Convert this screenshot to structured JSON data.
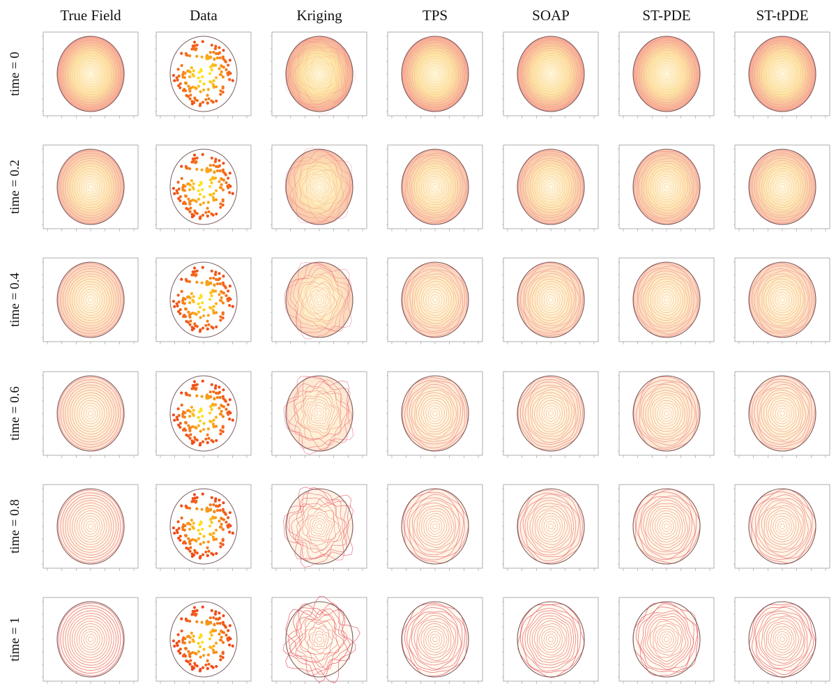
{
  "figure": {
    "columns": [
      "True Field",
      "Data",
      "Kriging",
      "TPS",
      "SOAP",
      "ST-PDE",
      "ST-tPDE"
    ],
    "rows": [
      "time = 0",
      "time = 0.2",
      "time = 0.4",
      "time = 0.6",
      "time = 0.8",
      "time = 1"
    ]
  },
  "colors": {
    "center": "#fff8d8",
    "mid": "#fde29a",
    "edge": "#f5a08c",
    "contour_light": "#f7b08a",
    "contour_dark": "#e8586a",
    "boundary": "#7a5a5a",
    "point_inner": "#ffe21a",
    "point_outer": "#f0481a",
    "axis": "#9a9a9a"
  }
}
